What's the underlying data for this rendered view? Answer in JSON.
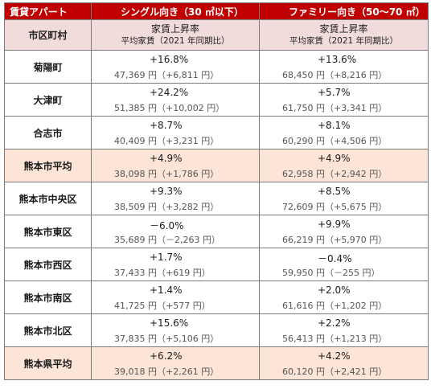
{
  "header": {
    "corner": "賃貸アパート",
    "single": "シングル向き（30 ㎡以下）",
    "family": "ファミリー向き（50〜70 ㎡）",
    "area_label": "市区町村",
    "col_main": "家賃上昇率",
    "col_sub": "平均家賃（2021 年同期比）"
  },
  "rows": [
    {
      "name": "菊陽町",
      "single_rate": "+16.8%",
      "single_price": "47,369 円（+6,811 円）",
      "family_rate": "+13.6%",
      "family_price": "68,450 円（+8,216 円）"
    },
    {
      "name": "大津町",
      "single_rate": "+24.2%",
      "single_price": "51,385 円（+10,002 円）",
      "family_rate": "+5.7%",
      "family_price": "61,750 円（+3,341 円）"
    },
    {
      "name": "合志市",
      "single_rate": "+8.7%",
      "single_price": "40,409 円（+3,231 円）",
      "family_rate": "+8.1%",
      "family_price": "60,290 円（+4,506 円）"
    },
    {
      "name": "熊本市平均",
      "single_rate": "+4.9%",
      "single_price": "38,098 円（+1,786 円）",
      "family_rate": "+4.9%",
      "family_price": "62,958 円（+2,942 円）"
    },
    {
      "name": "熊本市中央区",
      "single_rate": "+9.3%",
      "single_price": "38,509 円（+3,282 円）",
      "family_rate": "+8.5%",
      "family_price": "72,609 円（+5,675 円）"
    },
    {
      "name": "熊本市東区",
      "single_rate": "－6.0%",
      "single_price": "35,689 円（－2,263 円）",
      "family_rate": "+9.9%",
      "family_price": "66,219 円（+5,970 円）"
    },
    {
      "name": "熊本市西区",
      "single_rate": "+1.7%",
      "single_price": "37,433 円（+619 円）",
      "family_rate": "－0.4%",
      "family_price": "59,950 円（－255 円）"
    },
    {
      "name": "熊本市南区",
      "single_rate": "+1.4%",
      "single_price": "41,725 円（+577 円）",
      "family_rate": "+2.0%",
      "family_price": "61,616 円（+1,202 円）"
    },
    {
      "name": "熊本市北区",
      "single_rate": "+15.6%",
      "single_price": "37,835 円（+5,106 円）",
      "family_rate": "+2.2%",
      "family_price": "56,413 円（+1,213 円）"
    },
    {
      "name": "熊本県平均",
      "single_rate": "+6.2%",
      "single_price": "39,018 円（+2,261 円）",
      "family_rate": "+4.2%",
      "family_price": "60,120 円（+2,421 円）"
    }
  ]
}
